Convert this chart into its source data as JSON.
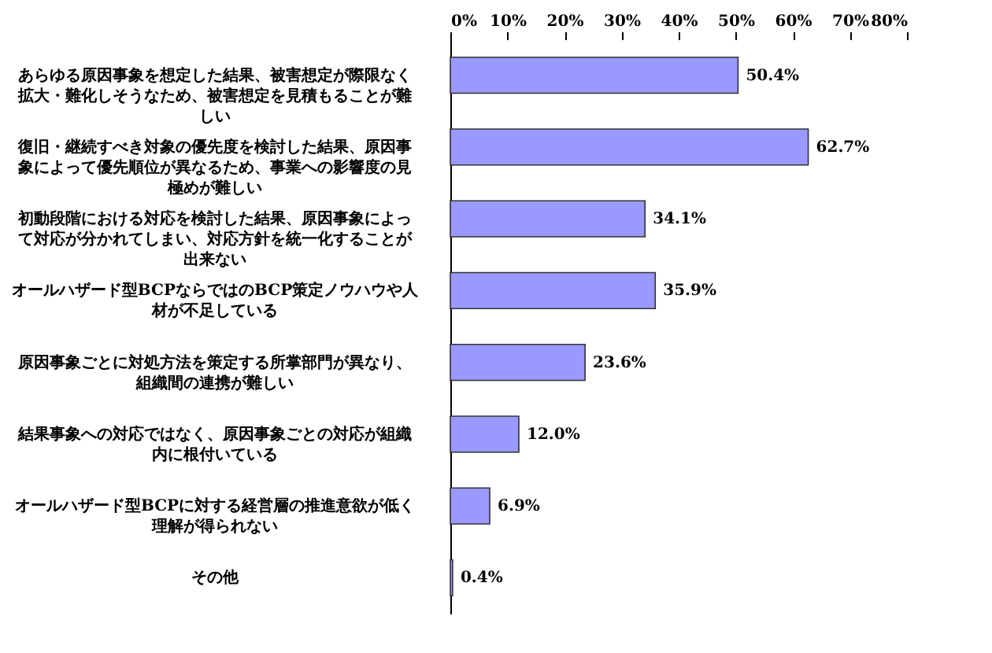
{
  "chart_data": {
    "type": "bar",
    "orientation": "horizontal",
    "categories": [
      "あらゆる原因事象を想定した結果、被害想定が際限なく拡大・難化しそうなため、被害想定を見積もることが難しい",
      "復旧・継続すべき対象の優先度を検討した結果、原因事象によって優先順位が異なるため、事業への影響度の見極めが難しい",
      "初動段階における対応を検討した結果、原因事象によって対応が分かれてしまい、対応方針を統一化することが出来ない",
      "オールハザード型BCPならではのBCP策定ノウハウや人材が不足している",
      "原因事象ごとに対処方法を策定する所掌部門が異なり、組織間の連携が難しい",
      "結果事象への対応ではなく、原因事象ごとの対応が組織内に根付いている",
      "オールハザード型BCPに対する経営層の推進意欲が低く理解が得られない",
      "その他"
    ],
    "values": [
      50.4,
      62.7,
      34.1,
      35.9,
      23.6,
      12.0,
      6.9,
      0.4
    ],
    "value_labels": [
      "50.4%",
      "62.7%",
      "34.1%",
      "35.9%",
      "23.6%",
      "12.0%",
      "6.9%",
      "0.4%"
    ],
    "color": "#9999ff",
    "xlim": [
      0,
      80
    ],
    "xticks": [
      {
        "value": 0,
        "label": "0%"
      },
      {
        "value": 10,
        "label": "10%"
      },
      {
        "value": 20,
        "label": "20%"
      },
      {
        "value": 30,
        "label": "30%"
      },
      {
        "value": 40,
        "label": "40%"
      },
      {
        "value": 50,
        "label": "50%"
      },
      {
        "value": 60,
        "label": "60%"
      },
      {
        "value": 70,
        "label": "70%"
      },
      {
        "value": 80,
        "label": "80%"
      }
    ],
    "grid": false
  }
}
